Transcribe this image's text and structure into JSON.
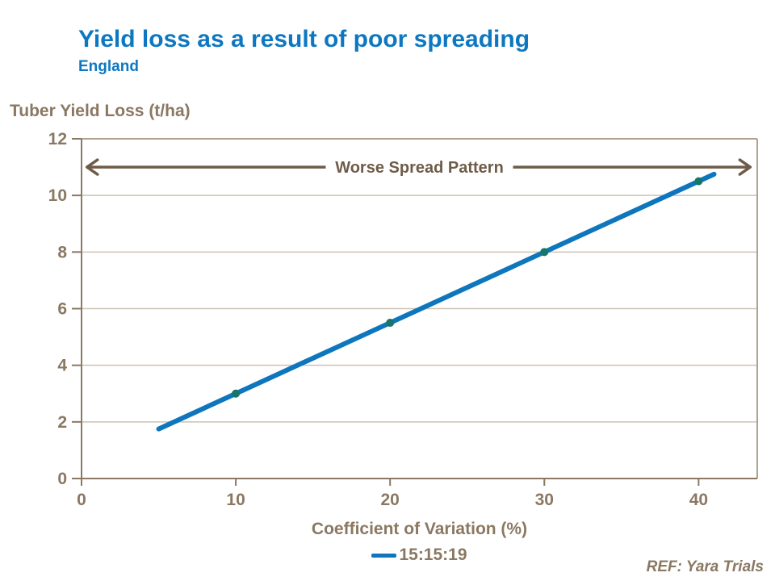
{
  "slide": {
    "title": "Yield loss as a result of poor spreading",
    "subtitle": "England",
    "ref_note": "REF: Yara Trials"
  },
  "chart_data": {
    "type": "line",
    "ylabel": "Tuber Yield Loss (t/ha)",
    "xlabel": "Coefficient of Variation (%)",
    "xlim": [
      0,
      43.8
    ],
    "ylim": [
      0,
      12
    ],
    "xticks": [
      0,
      10,
      20,
      30,
      40
    ],
    "yticks": [
      0,
      2,
      4,
      6,
      8,
      10,
      12
    ],
    "grid": "horizontal",
    "legend_position": "bottom",
    "series": [
      {
        "name": "15:15:19",
        "x": [
          5,
          10,
          20,
          30,
          40,
          41
        ],
        "y": [
          1.75,
          3,
          5.5,
          8,
          10.5,
          10.75
        ],
        "marker_points": {
          "x": [
            10,
            20,
            30,
            40
          ],
          "y": [
            3,
            5.5,
            8,
            10.5
          ]
        }
      }
    ],
    "annotation": {
      "text": "Worse Spread Pattern",
      "y": 11,
      "x_start": 0.3,
      "x_end": 43.4,
      "style": "double-headed-arrow"
    }
  },
  "colors": {
    "accent_blue": "#0d78c1",
    "line_blue": "#0e76bd",
    "marker_teal": "#17756a",
    "axis_brown": "#8a7862",
    "annotation_brown": "#6e5c48",
    "grid_line": "#cdc3b4",
    "frame_line": "#b1a390",
    "background": "#ffffff"
  }
}
